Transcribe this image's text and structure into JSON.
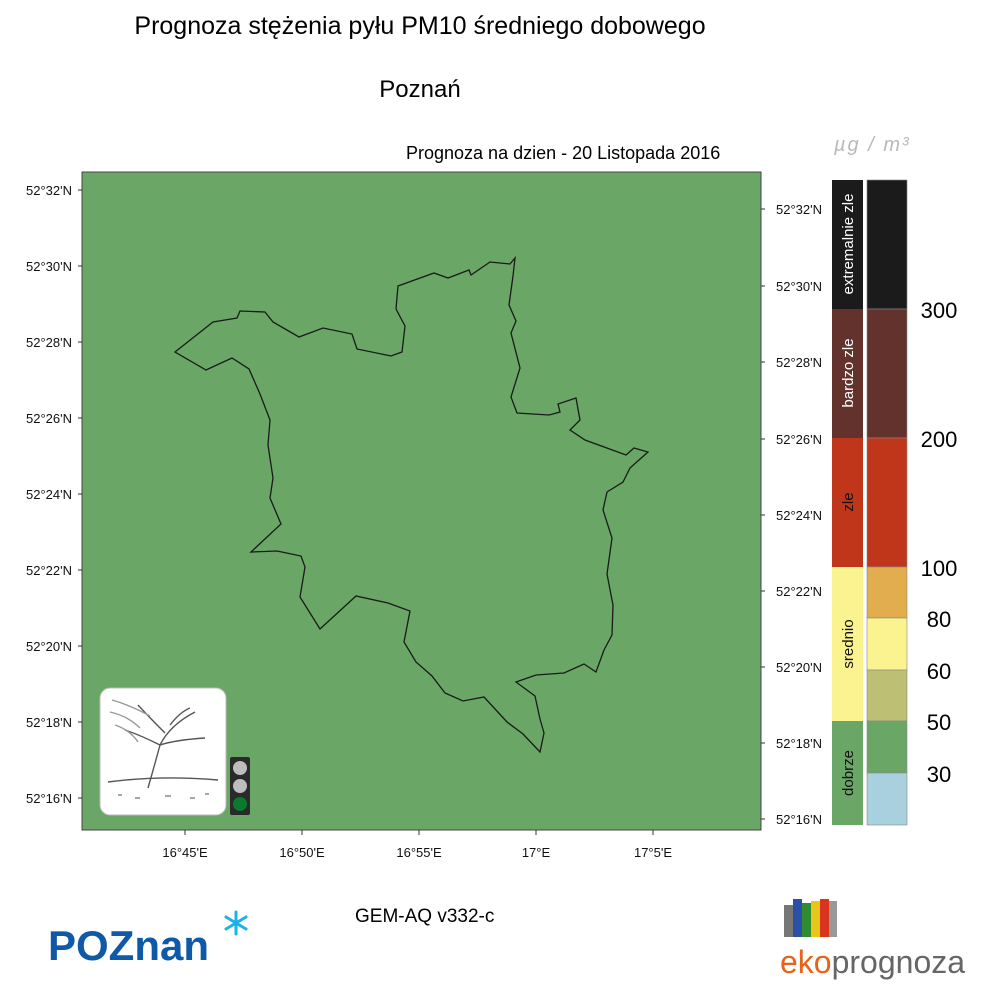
{
  "title": "Prognoza stężenia pyłu PM10 średniego dobowego",
  "subtitle": "Poznań",
  "forecast_date": "Prognoza na dzien -  20 Listopada 2016",
  "unit_label": "µg / m³",
  "model_label": "GEM-AQ v332-c",
  "map": {
    "fill_color": "#6aa767",
    "lat_labels_left": [
      "52°32'N",
      "52°30'N",
      "52°28'N",
      "52°26'N",
      "52°24'N",
      "52°22'N",
      "52°20'N",
      "52°18'N",
      "52°16'N"
    ],
    "lat_labels_right": [
      "52°32'N",
      "52°30'N",
      "52°28'N",
      "52°26'N",
      "52°24'N",
      "52°22'N",
      "52°20'N",
      "52°18'N",
      "52°16'N"
    ],
    "lon_labels": [
      "16°45'E",
      "16°50'E",
      "16°55'E",
      "17°E",
      "17°5'E"
    ],
    "boundary_name": "Poznań"
  },
  "legend": {
    "categories": [
      {
        "label": "extremalnie zle",
        "color": "#1b1b1b"
      },
      {
        "label": "bardzo zle",
        "color": "#63322c"
      },
      {
        "label": "zle",
        "color": "#c0361b"
      },
      {
        "label": "srednio",
        "color": "#fbf390"
      },
      {
        "label": "dobrze",
        "color": "#6aa767"
      }
    ],
    "bins": [
      {
        "color": "#1b1b1b"
      },
      {
        "color": "#63322c"
      },
      {
        "color": "#c0361b"
      },
      {
        "color": "#e2ad4e"
      },
      {
        "color": "#fbf390"
      },
      {
        "color": "#bdbf75"
      },
      {
        "color": "#6aa767"
      },
      {
        "color": "#a8d0df"
      }
    ],
    "thresholds": [
      "300",
      "200",
      "100",
      "80",
      "60",
      "50",
      "30"
    ]
  },
  "traffic_light": {
    "active": "green"
  },
  "logos": {
    "left": "POZnan",
    "right_prefix": "eko",
    "right_suffix": "prognoza"
  }
}
